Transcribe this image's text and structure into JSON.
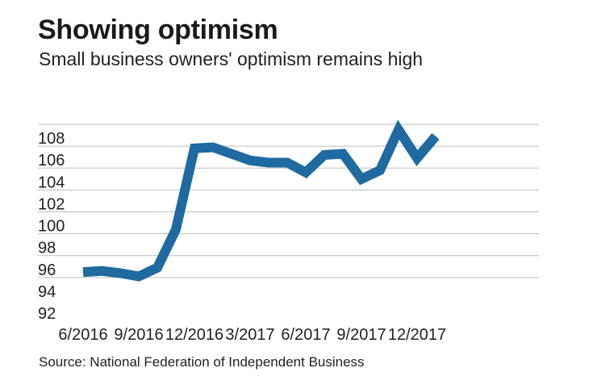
{
  "title": "Showing optimism",
  "subtitle": "Small business owners' optimism remains high",
  "source": "Source: National Federation of Independent Business",
  "colors": {
    "line": "#1f6aa0",
    "grid": "#bdbdbd",
    "text": "#222222"
  },
  "chart_data": {
    "type": "line",
    "title": "Showing optimism",
    "subtitle": "Small business owners' optimism remains high",
    "xlabel": "",
    "ylabel": "",
    "ylim": [
      92,
      108
    ],
    "yticks": [
      92,
      94,
      96,
      98,
      100,
      102,
      104,
      106,
      108
    ],
    "xtick_labels": [
      "6/2016",
      "9/2016",
      "12/2016",
      "3/2017",
      "6/2017",
      "9/2017",
      "12/2017"
    ],
    "grid": true,
    "series": [
      {
        "values": [
          {
            "x": "6/2016",
            "y": 94.5
          },
          {
            "x": "7/2016",
            "y": 94.6
          },
          {
            "x": "8/2016",
            "y": 94.4
          },
          {
            "x": "9/2016",
            "y": 94.1
          },
          {
            "x": "10/2016",
            "y": 94.9
          },
          {
            "x": "11/2016",
            "y": 98.4
          },
          {
            "x": "12/2016",
            "y": 105.8
          },
          {
            "x": "1/2017",
            "y": 105.9
          },
          {
            "x": "2/2017",
            "y": 105.3
          },
          {
            "x": "3/2017",
            "y": 104.7
          },
          {
            "x": "4/2017",
            "y": 104.5
          },
          {
            "x": "5/2017",
            "y": 104.5
          },
          {
            "x": "6/2017",
            "y": 103.6
          },
          {
            "x": "7/2017",
            "y": 105.2
          },
          {
            "x": "8/2017",
            "y": 105.3
          },
          {
            "x": "9/2017",
            "y": 103.0
          },
          {
            "x": "10/2017",
            "y": 103.8
          },
          {
            "x": "11/2017",
            "y": 107.5
          },
          {
            "x": "12/2017",
            "y": 104.9
          },
          {
            "x": "1/2018",
            "y": 106.9
          }
        ]
      }
    ]
  }
}
